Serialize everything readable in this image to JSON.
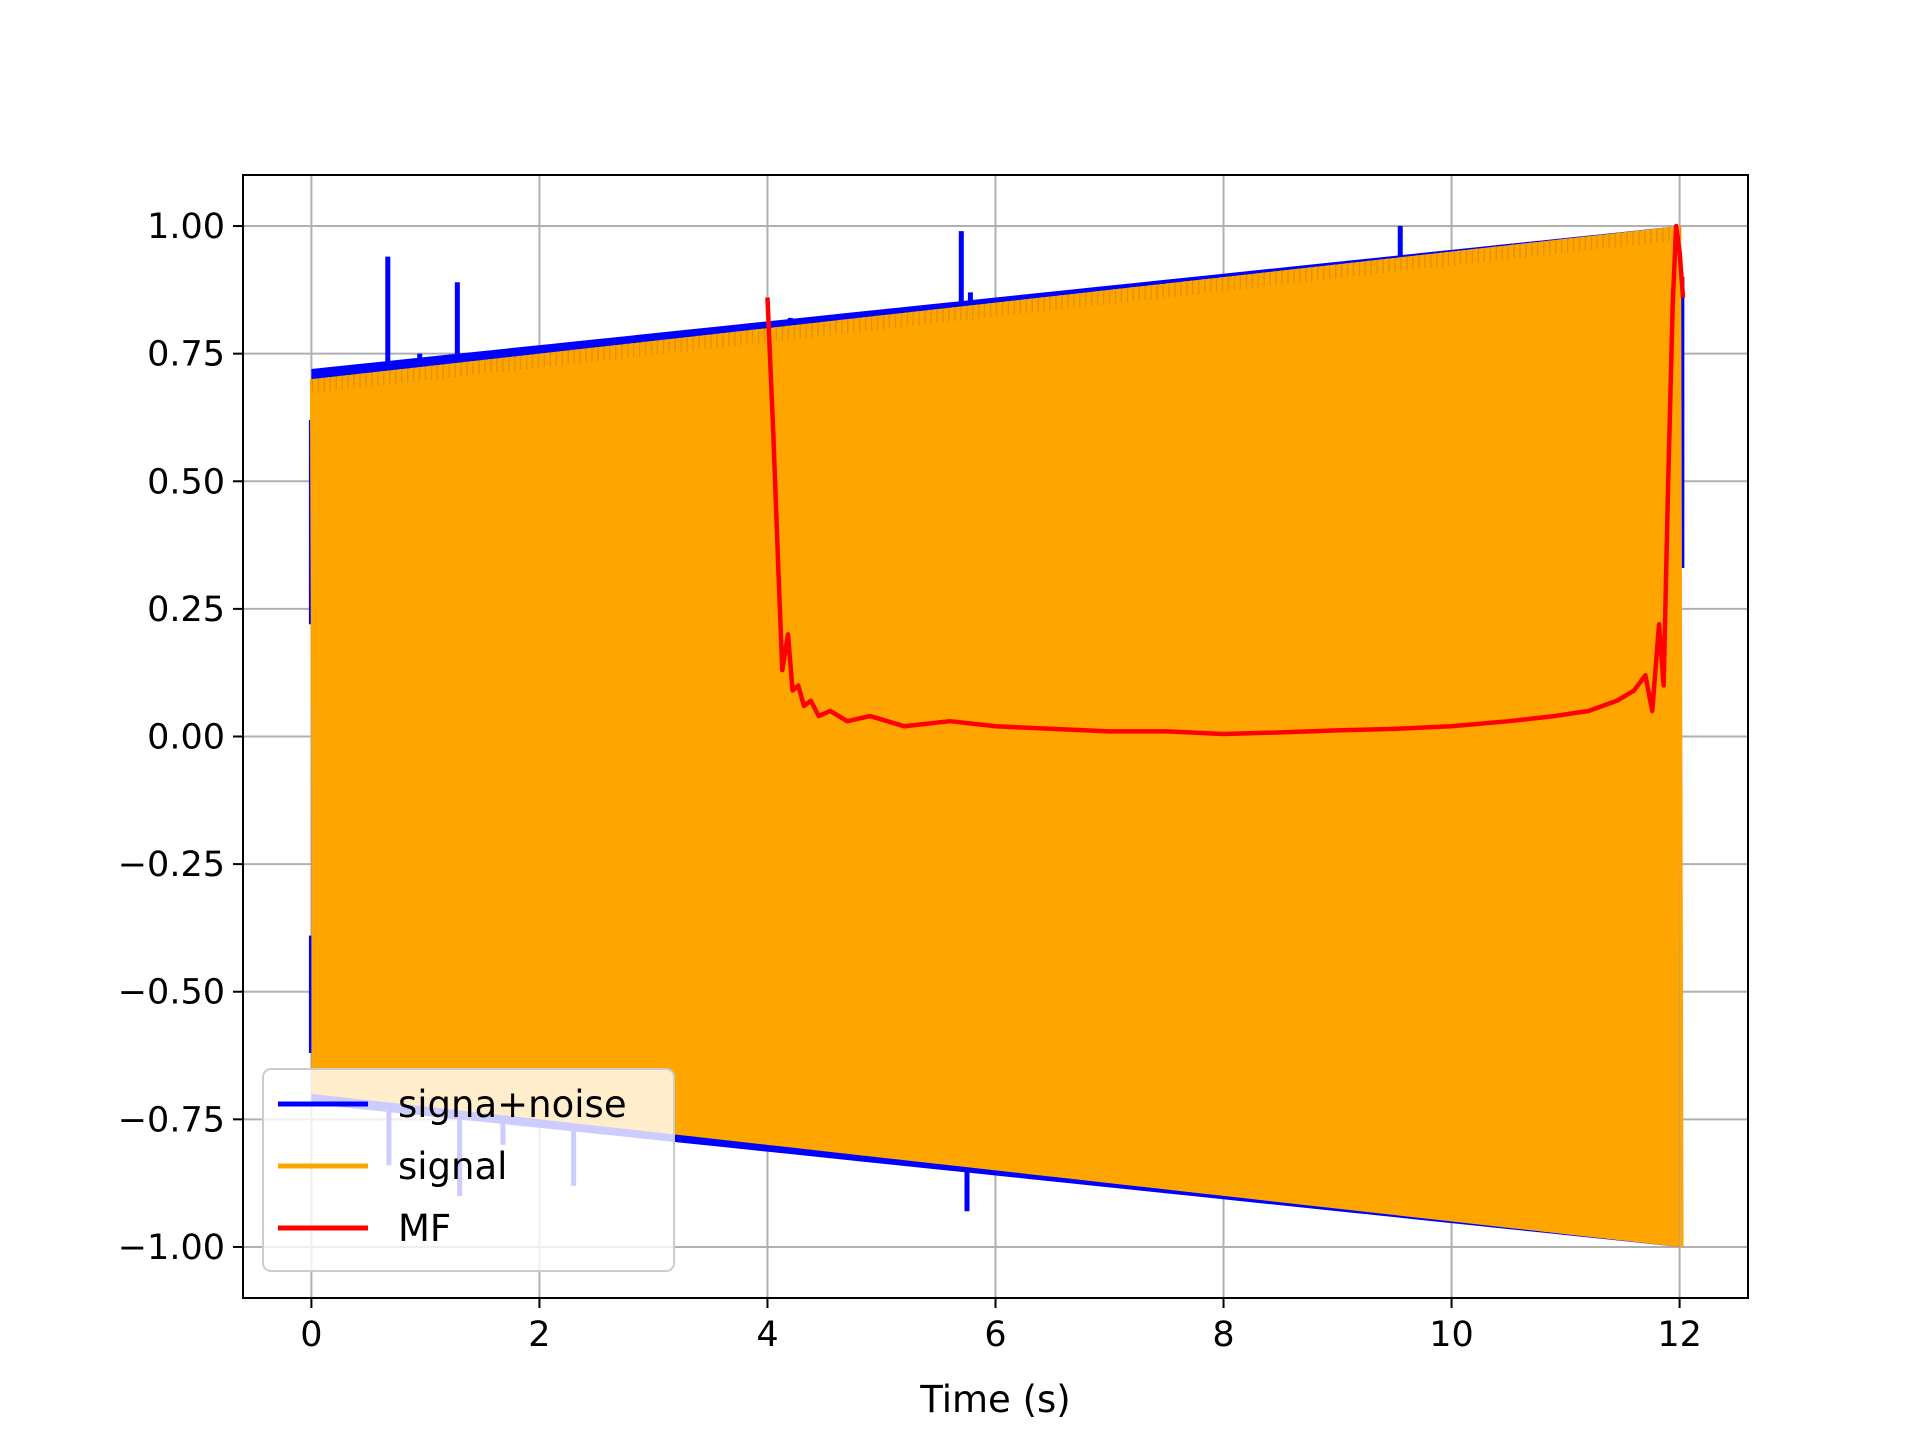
{
  "chart_data": {
    "type": "line",
    "title": "",
    "xlabel": "Time (s)",
    "ylabel": "",
    "xlim": [
      -0.6,
      12.6
    ],
    "ylim": [
      -1.1,
      1.1
    ],
    "x_ticks": [
      0,
      2,
      4,
      6,
      8,
      10,
      12
    ],
    "x_tick_labels": [
      "0",
      "2",
      "4",
      "6",
      "8",
      "10",
      "12"
    ],
    "y_ticks": [
      1.0,
      0.75,
      0.5,
      0.25,
      0.0,
      -0.25,
      -0.5,
      -0.75,
      -1.0
    ],
    "y_tick_labels": [
      "1.00",
      "0.75",
      "0.50",
      "0.25",
      "0.00",
      "−0.25",
      "−0.50",
      "−0.75",
      "−1.00"
    ],
    "grid": true,
    "legend_position": "lower-left",
    "series": [
      {
        "name": "signa+noise",
        "color": "#0000ff",
        "envelope": {
          "x": [
            0,
            12
          ],
          "upper": [
            0.72,
            1.0
          ],
          "lower": [
            -0.72,
            -1.0
          ]
        },
        "spikes": [
          {
            "x": 0.67,
            "y": 0.94
          },
          {
            "x": 0.95,
            "y": 0.75
          },
          {
            "x": 1.28,
            "y": 0.89
          },
          {
            "x": 1.3,
            "y": -0.9
          },
          {
            "x": 1.68,
            "y": -0.8
          },
          {
            "x": 2.3,
            "y": -0.88
          },
          {
            "x": 0.68,
            "y": -0.84
          },
          {
            "x": 3.5,
            "y": 0.78
          },
          {
            "x": 4.2,
            "y": 0.82
          },
          {
            "x": 5.4,
            "y": -0.81
          },
          {
            "x": 5.7,
            "y": 0.99
          },
          {
            "x": 5.75,
            "y": -0.93
          },
          {
            "x": 5.78,
            "y": 0.87
          },
          {
            "x": 6.8,
            "y": -0.87
          },
          {
            "x": 9.55,
            "y": 1.0
          },
          {
            "x": 12.02,
            "y": 0.33
          },
          {
            "x": 0.0,
            "y": 0.22
          },
          {
            "x": 0.0,
            "y": -0.39
          }
        ]
      },
      {
        "name": "signal",
        "color": "#ffa500",
        "envelope": {
          "x": [
            0,
            12
          ],
          "upper": [
            0.7,
            1.0
          ],
          "lower": [
            -0.7,
            -1.0
          ]
        }
      },
      {
        "name": "MF",
        "color": "#ff0000",
        "x": [
          4.0,
          4.05,
          4.1,
          4.13,
          4.18,
          4.22,
          4.27,
          4.32,
          4.38,
          4.45,
          4.55,
          4.7,
          4.9,
          5.2,
          5.6,
          6.0,
          6.5,
          7.0,
          7.5,
          8.0,
          8.5,
          9.0,
          9.5,
          10.0,
          10.5,
          10.9,
          11.2,
          11.45,
          11.6,
          11.7,
          11.76,
          11.82,
          11.86,
          11.9,
          11.94,
          11.97,
          12.0,
          12.03
        ],
        "y": [
          0.86,
          0.6,
          0.3,
          0.13,
          0.2,
          0.09,
          0.1,
          0.06,
          0.07,
          0.04,
          0.05,
          0.03,
          0.04,
          0.02,
          0.03,
          0.02,
          0.015,
          0.01,
          0.01,
          0.005,
          0.008,
          0.012,
          0.015,
          0.02,
          0.03,
          0.04,
          0.05,
          0.07,
          0.09,
          0.12,
          0.05,
          0.22,
          0.1,
          0.5,
          0.85,
          1.0,
          0.95,
          0.86
        ]
      }
    ]
  }
}
